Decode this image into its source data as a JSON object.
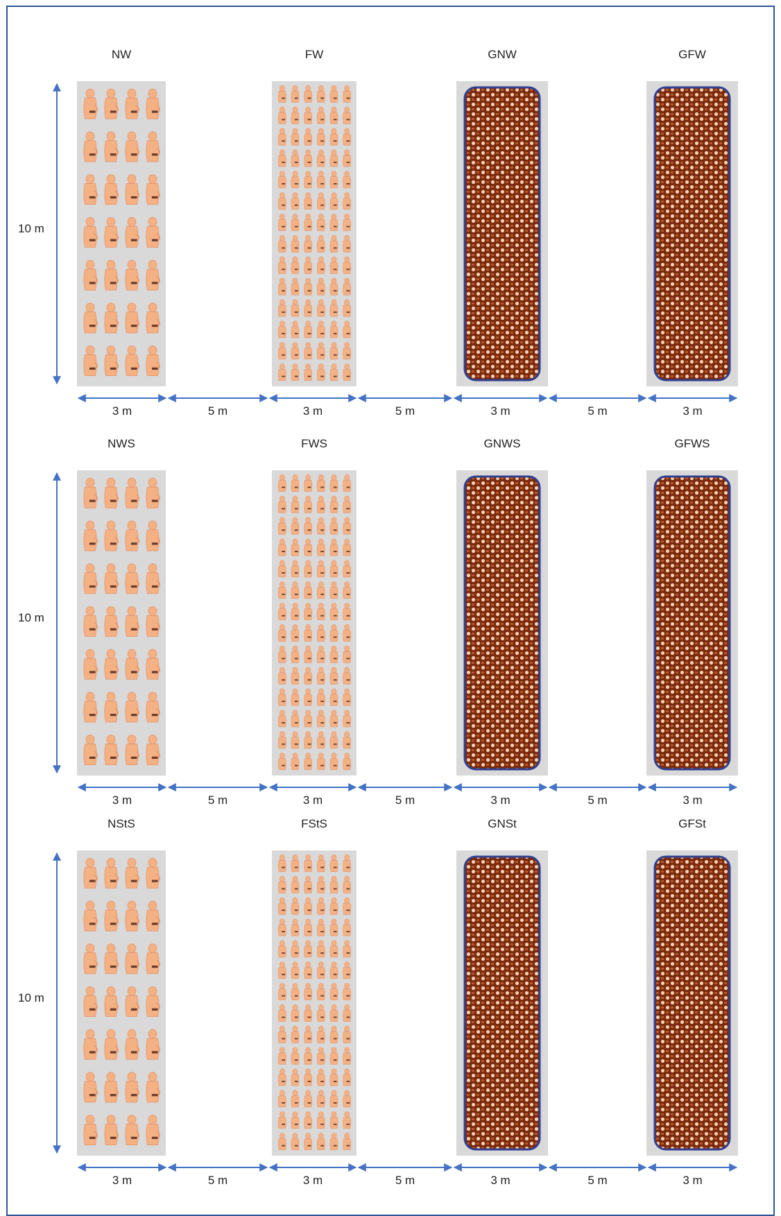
{
  "colors": {
    "frame": "#2f5496",
    "arrow": "#4472c4",
    "plot_bg": "#d9d9d9",
    "plant": "#f4b183",
    "plant_outline": "#e8956a",
    "grain_dark": "#7a2a0e",
    "grain_light": "#f6d0b0",
    "grain_border": "#2f3f8f"
  },
  "rows": [
    {
      "height_label": "10 m",
      "plots": [
        {
          "name": "NW",
          "kind": "normal-plants"
        },
        {
          "name": "FW",
          "kind": "fine-plants"
        },
        {
          "name": "GNW",
          "kind": "grain-pattern"
        },
        {
          "name": "GFW",
          "kind": "grain-pattern"
        }
      ],
      "widths": [
        "3 m",
        "5 m",
        "3 m",
        "5 m",
        "3 m",
        "5 m",
        "3 m"
      ]
    },
    {
      "height_label": "10 m",
      "plots": [
        {
          "name": "NWS",
          "kind": "normal-plants"
        },
        {
          "name": "FWS",
          "kind": "fine-plants"
        },
        {
          "name": "GNWS",
          "kind": "grain-pattern"
        },
        {
          "name": "GFWS",
          "kind": "grain-pattern"
        }
      ],
      "widths": [
        "3 m",
        "5 m",
        "3 m",
        "5 m",
        "3 m",
        "5 m",
        "3 m"
      ]
    },
    {
      "height_label": "10 m",
      "plots": [
        {
          "name": "NStS",
          "kind": "normal-plants"
        },
        {
          "name": "FStS",
          "kind": "fine-plants"
        },
        {
          "name": "GNSt",
          "kind": "grain-pattern"
        },
        {
          "name": "GFSt",
          "kind": "grain-pattern"
        }
      ],
      "widths": [
        "3 m",
        "5 m",
        "3 m",
        "5 m",
        "3 m",
        "5 m",
        "3 m"
      ]
    }
  ]
}
